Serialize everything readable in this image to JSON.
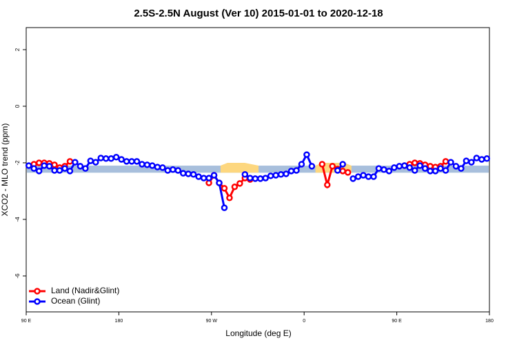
{
  "chart_data": {
    "type": "line",
    "title": "2.5S-2.5N August (Ver 10)   2015-01-01 to 2020-12-18",
    "xlabel": "Longitude (deg E)",
    "ylabel": "XCO2 - MLO trend (ppm)",
    "xlim": [
      90,
      540
    ],
    "xticks": [
      {
        "value": 90,
        "label": "90 E"
      },
      {
        "value": 180,
        "label": "180"
      },
      {
        "value": 270,
        "label": "90 W"
      },
      {
        "value": 360,
        "label": "0"
      },
      {
        "value": 450,
        "label": "90 E"
      },
      {
        "value": 540,
        "label": "180"
      }
    ],
    "ylim": [
      -7.27,
      2.78
    ],
    "yticks": [
      2,
      0,
      -2,
      -4,
      -6
    ],
    "legend": "bottom-left",
    "band": {
      "range": [
        -2.35,
        -2.1
      ],
      "color": "#a8bfdc"
    },
    "shaded": {
      "color": "#fdd77f",
      "areas": [
        {
          "x": [
            278.8,
            285.5,
            302.3,
            315.7
          ],
          "values": [
            -2.1,
            -2.0,
            -2.0,
            -2.1
          ]
        },
        {
          "x": [
            371,
            378,
            399,
            406
          ],
          "values": [
            -2.1,
            -2.0,
            -2.0,
            -2.1
          ]
        }
      ]
    },
    "x": [
      92.5,
      97.5,
      102.5,
      107.5,
      112.5,
      117.5,
      122.5,
      127.5,
      132.5,
      137.5,
      142.5,
      147.5,
      152.5,
      157.5,
      162.5,
      167.5,
      172.5,
      177.5,
      182.5,
      187.5,
      192.5,
      197.5,
      202.5,
      207.5,
      212.5,
      217.5,
      222.5,
      227.5,
      232.5,
      237.5,
      242.5,
      247.5,
      252.5,
      257.5,
      262.5,
      267.5,
      272.5,
      277.5,
      282.5,
      287.5,
      292.5,
      297.5,
      302.5,
      307.5,
      312.5,
      317.5,
      322.5,
      327.5,
      332.5,
      337.5,
      342.5,
      347.5,
      352.5,
      357.5,
      362.5,
      367.5,
      372.5,
      377.5,
      382.5,
      387.5,
      392.5,
      397.5,
      402.5,
      407.5,
      412.5,
      417.5,
      422.5,
      427.5,
      432.5,
      437.5,
      442.5,
      447.5,
      452.5,
      457.5,
      462.5,
      467.5,
      472.5,
      477.5,
      482.5,
      487.5,
      492.5,
      497.5,
      502.5,
      507.5,
      512.5,
      517.5,
      522.5,
      527.5,
      532.5,
      537.5
    ],
    "series": [
      {
        "name": "Land (Nadir&Glint)",
        "color": "#ff0000",
        "values": [
          null,
          -2.05,
          -2.0,
          -2.0,
          -2.02,
          -2.07,
          -2.17,
          -2.12,
          -1.95,
          null,
          null,
          null,
          null,
          null,
          null,
          null,
          null,
          null,
          null,
          null,
          null,
          null,
          null,
          null,
          null,
          null,
          null,
          null,
          null,
          null,
          null,
          null,
          null,
          null,
          null,
          -2.71,
          -2.44,
          -2.71,
          -2.9,
          -3.24,
          -2.85,
          -2.73,
          -2.54,
          -2.59,
          null,
          null,
          null,
          null,
          null,
          null,
          null,
          null,
          null,
          null,
          null,
          null,
          null,
          -2.05,
          -2.78,
          -2.12,
          -2.22,
          -2.29,
          -2.34,
          null,
          null,
          null,
          null,
          null,
          null,
          null,
          null,
          null,
          null,
          -2.1,
          -2.05,
          -2.0,
          -2.02,
          -2.07,
          -2.12,
          -2.15,
          -2.12,
          -1.95,
          null,
          null,
          null,
          null,
          null,
          null,
          null,
          null
        ]
      },
      {
        "name": "Ocean (Glint)",
        "color": "#0000ff",
        "values": [
          -2.1,
          -2.2,
          -2.29,
          -2.1,
          -2.12,
          -2.27,
          -2.27,
          -2.2,
          -2.29,
          -1.98,
          -2.12,
          -2.2,
          -1.93,
          -1.98,
          -1.83,
          -1.85,
          -1.85,
          -1.8,
          -1.88,
          -1.95,
          -1.95,
          -1.95,
          -2.05,
          -2.07,
          -2.1,
          -2.15,
          -2.17,
          -2.27,
          -2.24,
          -2.27,
          -2.37,
          -2.39,
          -2.41,
          -2.49,
          -2.54,
          -2.54,
          -2.44,
          -2.71,
          -3.59,
          null,
          null,
          null,
          -2.41,
          -2.54,
          -2.56,
          -2.56,
          -2.54,
          -2.46,
          -2.44,
          -2.41,
          -2.39,
          -2.29,
          -2.27,
          -2.05,
          -1.71,
          -2.12,
          null,
          null,
          null,
          null,
          -2.27,
          -2.05,
          null,
          -2.56,
          -2.49,
          -2.44,
          -2.49,
          -2.49,
          -2.2,
          -2.24,
          -2.29,
          -2.17,
          -2.12,
          -2.1,
          -2.17,
          -2.27,
          -2.1,
          -2.2,
          -2.29,
          -2.29,
          -2.2,
          -2.27,
          -1.98,
          -2.12,
          -2.2,
          -1.93,
          -1.98,
          -1.83,
          -1.88,
          -1.85
        ]
      }
    ]
  }
}
